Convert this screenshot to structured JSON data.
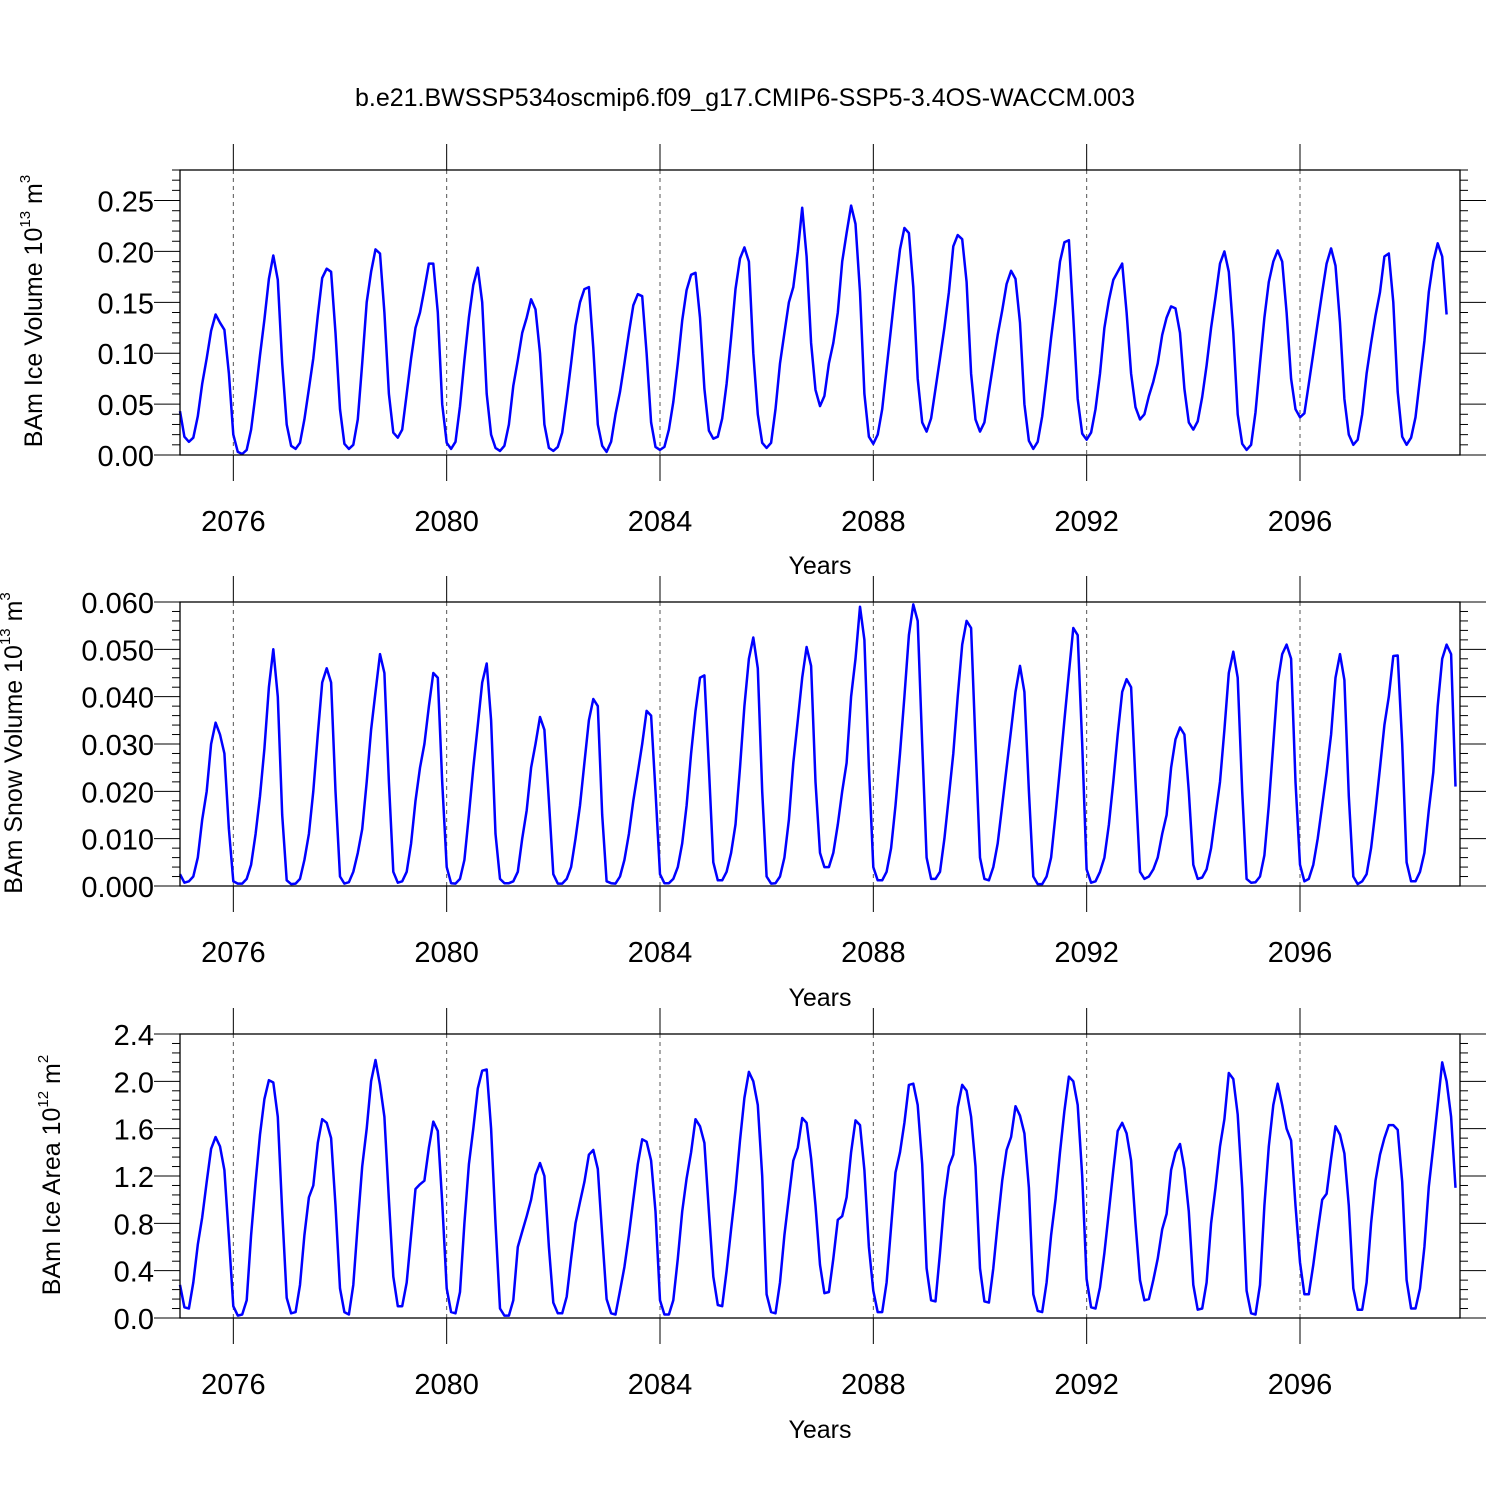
{
  "title": "b.e21.BWSSP534oscmip6.f09_g17.CMIP6-SSP5-3.4OS-WACCM.003",
  "series_color": "#0000ff",
  "chart_data": [
    {
      "type": "line",
      "ylabel": "BAm Ice Volume 10",
      "ylabel_exp": "13",
      "ylabel_unit": " m",
      "ylabel_unit_exp": "3",
      "xlabel": "Years",
      "xlim": [
        2075.0,
        2099.0
      ],
      "ylim": [
        0.0,
        0.28
      ],
      "yticks": [
        "0.00",
        "0.05",
        "0.10",
        "0.15",
        "0.20",
        "0.25"
      ],
      "ytick_values": [
        0.0,
        0.05,
        0.1,
        0.15,
        0.2,
        0.25
      ],
      "xticks": [
        "2076",
        "2080",
        "2084",
        "2088",
        "2092",
        "2096"
      ],
      "xtick_values": [
        2076,
        2080,
        2084,
        2088,
        2092,
        2096
      ],
      "grid": "vertical dashed at major x ticks",
      "x_start": 2075.0,
      "x_step": 0.08333,
      "values": [
        0.043,
        0.018,
        0.013,
        0.017,
        0.038,
        0.07,
        0.095,
        0.122,
        0.138,
        0.13,
        0.123,
        0.08,
        0.02,
        0.003,
        0.001,
        0.005,
        0.025,
        0.06,
        0.098,
        0.133,
        0.173,
        0.196,
        0.172,
        0.09,
        0.03,
        0.009,
        0.006,
        0.012,
        0.035,
        0.065,
        0.095,
        0.137,
        0.174,
        0.183,
        0.18,
        0.12,
        0.045,
        0.011,
        0.006,
        0.01,
        0.035,
        0.09,
        0.15,
        0.18,
        0.202,
        0.198,
        0.14,
        0.06,
        0.022,
        0.017,
        0.025,
        0.06,
        0.095,
        0.125,
        0.14,
        0.163,
        0.188,
        0.188,
        0.14,
        0.05,
        0.012,
        0.006,
        0.013,
        0.048,
        0.093,
        0.135,
        0.167,
        0.184,
        0.15,
        0.06,
        0.02,
        0.007,
        0.004,
        0.009,
        0.03,
        0.068,
        0.093,
        0.12,
        0.135,
        0.153,
        0.143,
        0.1,
        0.03,
        0.007,
        0.004,
        0.008,
        0.022,
        0.055,
        0.09,
        0.127,
        0.15,
        0.163,
        0.165,
        0.105,
        0.03,
        0.009,
        0.003,
        0.013,
        0.04,
        0.062,
        0.09,
        0.12,
        0.147,
        0.158,
        0.156,
        0.1,
        0.032,
        0.008,
        0.005,
        0.008,
        0.025,
        0.052,
        0.09,
        0.132,
        0.162,
        0.177,
        0.179,
        0.135,
        0.065,
        0.024,
        0.016,
        0.018,
        0.036,
        0.07,
        0.115,
        0.163,
        0.193,
        0.204,
        0.19,
        0.1,
        0.04,
        0.012,
        0.007,
        0.012,
        0.045,
        0.09,
        0.12,
        0.15,
        0.165,
        0.2,
        0.243,
        0.195,
        0.11,
        0.064,
        0.048,
        0.058,
        0.09,
        0.11,
        0.14,
        0.19,
        0.218,
        0.245,
        0.227,
        0.16,
        0.06,
        0.018,
        0.011,
        0.02,
        0.045,
        0.085,
        0.125,
        0.165,
        0.202,
        0.223,
        0.218,
        0.165,
        0.075,
        0.032,
        0.023,
        0.036,
        0.065,
        0.095,
        0.125,
        0.16,
        0.205,
        0.216,
        0.212,
        0.17,
        0.08,
        0.035,
        0.023,
        0.032,
        0.062,
        0.09,
        0.118,
        0.142,
        0.168,
        0.181,
        0.173,
        0.13,
        0.05,
        0.014,
        0.006,
        0.013,
        0.038,
        0.075,
        0.115,
        0.15,
        0.19,
        0.209,
        0.211,
        0.135,
        0.055,
        0.021,
        0.015,
        0.022,
        0.045,
        0.08,
        0.125,
        0.152,
        0.172,
        0.18,
        0.188,
        0.14,
        0.08,
        0.047,
        0.035,
        0.04,
        0.058,
        0.072,
        0.09,
        0.118,
        0.135,
        0.146,
        0.144,
        0.12,
        0.065,
        0.032,
        0.025,
        0.033,
        0.057,
        0.088,
        0.125,
        0.155,
        0.188,
        0.2,
        0.18,
        0.12,
        0.04,
        0.011,
        0.005,
        0.01,
        0.042,
        0.09,
        0.135,
        0.17,
        0.19,
        0.201,
        0.19,
        0.14,
        0.075,
        0.045,
        0.037,
        0.041,
        0.07,
        0.1,
        0.13,
        0.16,
        0.188,
        0.203,
        0.186,
        0.13,
        0.055,
        0.02,
        0.01,
        0.015,
        0.04,
        0.08,
        0.11,
        0.137,
        0.16,
        0.195,
        0.198,
        0.15,
        0.062,
        0.018,
        0.01,
        0.017,
        0.037,
        0.075,
        0.112,
        0.16,
        0.19,
        0.208,
        0.195,
        0.138
      ]
    },
    {
      "type": "line",
      "ylabel": "BAm Snow Volume 10",
      "ylabel_exp": "13",
      "ylabel_unit": " m",
      "ylabel_unit_exp": "3",
      "xlabel": "Years",
      "xlim": [
        2075.0,
        2099.0
      ],
      "ylim": [
        0.0,
        0.06
      ],
      "yticks": [
        "0.000",
        "0.010",
        "0.020",
        "0.030",
        "0.040",
        "0.050",
        "0.060"
      ],
      "ytick_values": [
        0.0,
        0.01,
        0.02,
        0.03,
        0.04,
        0.05,
        0.06
      ],
      "xticks": [
        "2076",
        "2080",
        "2084",
        "2088",
        "2092",
        "2096"
      ],
      "xtick_values": [
        2076,
        2080,
        2084,
        2088,
        2092,
        2096
      ],
      "grid": "vertical dashed at major x ticks",
      "x_start": 2075.0,
      "x_step": 0.08333,
      "values": [
        0.0025,
        0.0007,
        0.001,
        0.002,
        0.006,
        0.014,
        0.02,
        0.03,
        0.0345,
        0.032,
        0.028,
        0.012,
        0.001,
        0.0005,
        0.0005,
        0.0015,
        0.0045,
        0.011,
        0.019,
        0.029,
        0.042,
        0.05,
        0.04,
        0.015,
        0.0012,
        0.0004,
        0.0005,
        0.0015,
        0.0055,
        0.011,
        0.02,
        0.032,
        0.043,
        0.046,
        0.043,
        0.02,
        0.002,
        0.0005,
        0.0008,
        0.003,
        0.007,
        0.012,
        0.022,
        0.033,
        0.041,
        0.049,
        0.045,
        0.022,
        0.003,
        0.0007,
        0.001,
        0.003,
        0.009,
        0.018,
        0.025,
        0.03,
        0.038,
        0.045,
        0.044,
        0.022,
        0.004,
        0.0006,
        0.0005,
        0.0015,
        0.0055,
        0.015,
        0.025,
        0.034,
        0.043,
        0.047,
        0.035,
        0.011,
        0.0015,
        0.0006,
        0.0006,
        0.001,
        0.003,
        0.01,
        0.016,
        0.025,
        0.03,
        0.0357,
        0.033,
        0.018,
        0.0025,
        0.0005,
        0.0005,
        0.0015,
        0.004,
        0.01,
        0.017,
        0.026,
        0.035,
        0.0395,
        0.038,
        0.015,
        0.001,
        0.0006,
        0.0005,
        0.002,
        0.0055,
        0.011,
        0.018,
        0.024,
        0.03,
        0.037,
        0.036,
        0.02,
        0.0025,
        0.0006,
        0.0006,
        0.0015,
        0.004,
        0.009,
        0.017,
        0.028,
        0.037,
        0.044,
        0.0445,
        0.025,
        0.005,
        0.0012,
        0.0012,
        0.003,
        0.007,
        0.013,
        0.025,
        0.038,
        0.048,
        0.0525,
        0.046,
        0.02,
        0.002,
        0.0005,
        0.0006,
        0.002,
        0.006,
        0.014,
        0.026,
        0.035,
        0.044,
        0.0505,
        0.0465,
        0.022,
        0.007,
        0.004,
        0.004,
        0.007,
        0.013,
        0.02,
        0.026,
        0.04,
        0.048,
        0.059,
        0.052,
        0.025,
        0.004,
        0.0012,
        0.0012,
        0.003,
        0.008,
        0.017,
        0.028,
        0.04,
        0.053,
        0.0595,
        0.056,
        0.03,
        0.006,
        0.0015,
        0.0015,
        0.003,
        0.01,
        0.019,
        0.028,
        0.04,
        0.051,
        0.056,
        0.0545,
        0.03,
        0.006,
        0.0015,
        0.0012,
        0.004,
        0.009,
        0.017,
        0.025,
        0.033,
        0.041,
        0.0465,
        0.041,
        0.02,
        0.002,
        0.0004,
        0.0004,
        0.002,
        0.006,
        0.015,
        0.025,
        0.035,
        0.045,
        0.0545,
        0.053,
        0.03,
        0.0035,
        0.0007,
        0.001,
        0.003,
        0.006,
        0.013,
        0.022,
        0.032,
        0.041,
        0.0437,
        0.042,
        0.022,
        0.003,
        0.0015,
        0.002,
        0.0035,
        0.006,
        0.011,
        0.015,
        0.025,
        0.031,
        0.0335,
        0.032,
        0.02,
        0.0045,
        0.0015,
        0.0018,
        0.0035,
        0.008,
        0.015,
        0.022,
        0.033,
        0.045,
        0.0495,
        0.044,
        0.02,
        0.0015,
        0.0007,
        0.0008,
        0.002,
        0.0065,
        0.017,
        0.03,
        0.043,
        0.049,
        0.051,
        0.048,
        0.022,
        0.0045,
        0.001,
        0.0015,
        0.0045,
        0.01,
        0.017,
        0.024,
        0.032,
        0.044,
        0.049,
        0.0435,
        0.019,
        0.002,
        0.0004,
        0.001,
        0.0025,
        0.008,
        0.016,
        0.025,
        0.034,
        0.04,
        0.0486,
        0.0487,
        0.03,
        0.005,
        0.001,
        0.001,
        0.003,
        0.007,
        0.016,
        0.024,
        0.038,
        0.048,
        0.051,
        0.049,
        0.021
      ]
    },
    {
      "type": "line",
      "ylabel": "BAm Ice Area 10",
      "ylabel_exp": "12",
      "ylabel_unit": " m",
      "ylabel_unit_exp": "2",
      "xlabel": "Years",
      "xlim": [
        2075.0,
        2099.0
      ],
      "ylim": [
        0.0,
        2.4
      ],
      "yticks": [
        "0.0",
        "0.4",
        "0.8",
        "1.2",
        "1.6",
        "2.0",
        "2.4"
      ],
      "ytick_values": [
        0.0,
        0.4,
        0.8,
        1.2,
        1.6,
        2.0,
        2.4
      ],
      "xticks": [
        "2076",
        "2080",
        "2084",
        "2088",
        "2092",
        "2096"
      ],
      "xtick_values": [
        2076,
        2080,
        2084,
        2088,
        2092,
        2096
      ],
      "grid": "vertical dashed at major x ticks",
      "x_start": 2075.0,
      "x_step": 0.08333,
      "values": [
        0.28,
        0.09,
        0.08,
        0.3,
        0.62,
        0.85,
        1.15,
        1.43,
        1.53,
        1.45,
        1.25,
        0.68,
        0.1,
        0.02,
        0.03,
        0.15,
        0.7,
        1.15,
        1.55,
        1.85,
        2.01,
        1.99,
        1.7,
        0.9,
        0.17,
        0.04,
        0.05,
        0.28,
        0.7,
        1.02,
        1.12,
        1.48,
        1.68,
        1.65,
        1.52,
        0.95,
        0.25,
        0.05,
        0.03,
        0.28,
        0.8,
        1.28,
        1.6,
        2.0,
        2.18,
        1.97,
        1.7,
        1.0,
        0.35,
        0.1,
        0.1,
        0.3,
        0.7,
        1.09,
        1.13,
        1.16,
        1.44,
        1.66,
        1.58,
        0.98,
        0.25,
        0.05,
        0.04,
        0.22,
        0.8,
        1.3,
        1.6,
        1.94,
        2.09,
        2.1,
        1.6,
        0.8,
        0.08,
        0.02,
        0.02,
        0.15,
        0.6,
        0.73,
        0.86,
        1.0,
        1.21,
        1.31,
        1.2,
        0.6,
        0.13,
        0.04,
        0.04,
        0.18,
        0.5,
        0.8,
        0.98,
        1.15,
        1.38,
        1.42,
        1.26,
        0.7,
        0.16,
        0.04,
        0.03,
        0.23,
        0.43,
        0.7,
        1.0,
        1.3,
        1.51,
        1.49,
        1.33,
        0.9,
        0.15,
        0.03,
        0.03,
        0.15,
        0.5,
        0.9,
        1.18,
        1.4,
        1.68,
        1.62,
        1.48,
        0.9,
        0.35,
        0.11,
        0.1,
        0.4,
        0.75,
        1.08,
        1.5,
        1.86,
        2.08,
        2.0,
        1.8,
        1.2,
        0.2,
        0.05,
        0.04,
        0.3,
        0.7,
        1.02,
        1.33,
        1.44,
        1.69,
        1.65,
        1.35,
        0.95,
        0.45,
        0.21,
        0.22,
        0.5,
        0.83,
        0.86,
        1.02,
        1.4,
        1.67,
        1.63,
        1.25,
        0.6,
        0.23,
        0.05,
        0.05,
        0.3,
        0.77,
        1.23,
        1.4,
        1.65,
        1.97,
        1.98,
        1.8,
        1.3,
        0.42,
        0.15,
        0.14,
        0.55,
        1.0,
        1.28,
        1.38,
        1.78,
        1.97,
        1.92,
        1.7,
        1.28,
        0.42,
        0.14,
        0.13,
        0.42,
        0.8,
        1.16,
        1.42,
        1.53,
        1.79,
        1.71,
        1.56,
        1.1,
        0.2,
        0.06,
        0.05,
        0.3,
        0.7,
        1.0,
        1.4,
        1.75,
        2.04,
        2.0,
        1.8,
        1.2,
        0.33,
        0.09,
        0.08,
        0.26,
        0.55,
        0.9,
        1.25,
        1.58,
        1.65,
        1.56,
        1.33,
        0.8,
        0.32,
        0.15,
        0.16,
        0.32,
        0.5,
        0.75,
        0.88,
        1.25,
        1.4,
        1.47,
        1.26,
        0.9,
        0.28,
        0.07,
        0.08,
        0.3,
        0.8,
        1.1,
        1.45,
        1.68,
        2.07,
        2.02,
        1.72,
        1.1,
        0.23,
        0.04,
        0.03,
        0.28,
        0.95,
        1.45,
        1.8,
        1.98,
        1.8,
        1.6,
        1.5,
        0.95,
        0.47,
        0.2,
        0.2,
        0.45,
        0.73,
        1.0,
        1.05,
        1.35,
        1.62,
        1.55,
        1.39,
        0.95,
        0.25,
        0.07,
        0.07,
        0.3,
        0.8,
        1.16,
        1.38,
        1.52,
        1.63,
        1.63,
        1.59,
        1.15,
        0.32,
        0.08,
        0.08,
        0.25,
        0.6,
        1.11,
        1.45,
        1.8,
        2.16,
        2.0,
        1.7,
        1.1
      ]
    }
  ]
}
